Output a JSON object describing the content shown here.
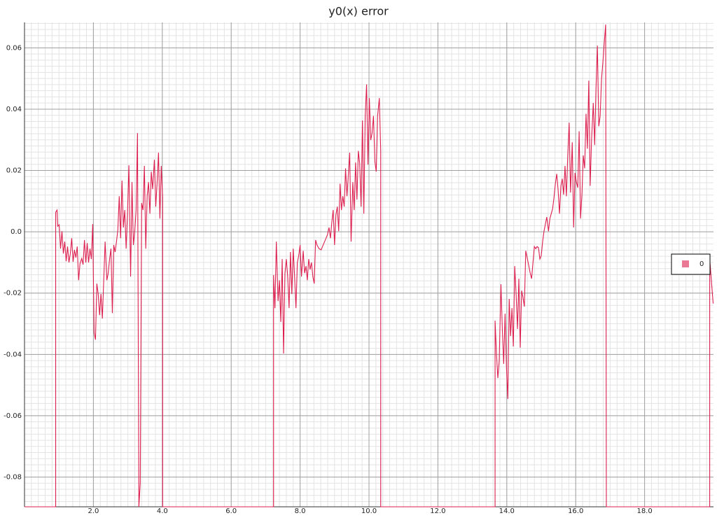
{
  "chart_data": {
    "type": "line",
    "title": "y0(x) error",
    "x": [
      0,
      0.905,
      0.905,
      0.945,
      0.966,
      1.006,
      1.047,
      1.087,
      1.128,
      1.168,
      1.209,
      1.25,
      1.29,
      1.33,
      1.37,
      1.41,
      1.45,
      1.49,
      1.53,
      1.57,
      1.61,
      1.66,
      1.7,
      1.74,
      1.78,
      1.82,
      1.86,
      1.9,
      1.94,
      1.98,
      2.02,
      2.06,
      2.1,
      2.14,
      2.18,
      2.22,
      2.26,
      2.3,
      2.34,
      2.39,
      2.43,
      2.47,
      2.51,
      2.55,
      2.59,
      2.63,
      2.67,
      2.71,
      2.75,
      2.79,
      2.83,
      2.87,
      2.91,
      2.95,
      2.99,
      3.03,
      3.08,
      3.12,
      3.16,
      3.2,
      3.24,
      3.28,
      3.32,
      3.36,
      3.4,
      3.44,
      3.48,
      3.52,
      3.56,
      3.6,
      3.64,
      3.68,
      3.72,
      3.77,
      3.81,
      3.85,
      3.89,
      3.93,
      3.97,
      4.01,
      4.01,
      7.23,
      7.23,
      7.27,
      7.31,
      7.36,
      7.4,
      7.44,
      7.48,
      7.52,
      7.56,
      7.6,
      7.64,
      7.68,
      7.72,
      7.76,
      7.8,
      7.84,
      7.88,
      7.92,
      7.96,
      8.0,
      8.04,
      8.09,
      8.13,
      8.17,
      8.21,
      8.25,
      8.29,
      8.33,
      8.37,
      8.41,
      8.45,
      8.49,
      8.55,
      8.61,
      8.67,
      8.73,
      8.79,
      8.84,
      8.88,
      8.92,
      8.96,
      9.0,
      9.04,
      9.08,
      9.12,
      9.16,
      9.2,
      9.24,
      9.28,
      9.32,
      9.36,
      9.4,
      9.44,
      9.48,
      9.53,
      9.57,
      9.61,
      9.65,
      9.69,
      9.73,
      9.77,
      9.81,
      9.85,
      9.89,
      9.93,
      9.97,
      10.01,
      10.05,
      10.09,
      10.13,
      10.17,
      10.21,
      10.25,
      10.3,
      10.34,
      10.34,
      13.66,
      13.66,
      13.7,
      13.74,
      13.78,
      13.83,
      13.87,
      13.91,
      13.95,
      13.99,
      14.03,
      14.07,
      14.11,
      14.15,
      14.19,
      14.23,
      14.27,
      14.31,
      14.35,
      14.39,
      14.43,
      14.47,
      14.51,
      14.55,
      14.6,
      14.64,
      14.68,
      14.72,
      14.8,
      14.84,
      14.88,
      14.92,
      14.96,
      15.0,
      15.04,
      15.08,
      15.12,
      15.16,
      15.21,
      15.25,
      15.29,
      15.33,
      15.37,
      15.41,
      15.45,
      15.49,
      15.53,
      15.57,
      15.61,
      15.65,
      15.69,
      15.73,
      15.77,
      15.81,
      15.85,
      15.9,
      15.94,
      15.98,
      16.02,
      16.06,
      16.1,
      16.14,
      16.18,
      16.22,
      16.26,
      16.3,
      16.34,
      16.38,
      16.42,
      16.46,
      16.51,
      16.55,
      16.59,
      16.63,
      16.67,
      16.71,
      16.75,
      16.79,
      16.83,
      16.87,
      16.89,
      19.89,
      19.89,
      19.99
    ],
    "series": [
      {
        "name": "0",
        "color": "#dc1f4f",
        "values": [
          -0.0897,
          -0.0897,
          0.0064,
          0.0071,
          0.0018,
          0.0023,
          -0.0055,
          0.0002,
          -0.0071,
          -0.0032,
          -0.0096,
          -0.0048,
          -0.01,
          -0.0071,
          -0.0021,
          -0.0098,
          -0.0059,
          -0.0084,
          -0.0048,
          -0.0158,
          -0.0105,
          -0.0087,
          -0.0107,
          -0.0027,
          -0.01,
          -0.0037,
          -0.01,
          -0.0055,
          -0.0089,
          0.0025,
          -0.0329,
          -0.0352,
          -0.0169,
          -0.0203,
          -0.0272,
          -0.0203,
          -0.0283,
          -0.0158,
          -0.0032,
          -0.0158,
          -0.0135,
          -0.0089,
          -0.0055,
          -0.0265,
          -0.0043,
          -0.0066,
          -0.0032,
          0.0007,
          0.0116,
          -0.0021,
          0.0167,
          0.0014,
          0.0071,
          -0.0055,
          0.0062,
          0.0217,
          -0.0146,
          0.0162,
          -0.0043,
          0.0002,
          0.0071,
          0.0322,
          -0.0897,
          -0.082,
          0.0094,
          0.0071,
          0.0215,
          -0.0055,
          0.0116,
          0.0162,
          0.0059,
          0.0196,
          0.0139,
          0.0235,
          0.0082,
          0.0162,
          0.0258,
          0.0043,
          0.0215,
          0.0112,
          -0.0897,
          -0.0897,
          -0.0141,
          -0.0249,
          -0.0032,
          -0.0226,
          -0.0158,
          -0.0294,
          -0.0089,
          -0.0397,
          -0.0135,
          -0.0089,
          -0.0146,
          -0.0249,
          -0.0066,
          -0.0203,
          -0.0055,
          -0.0146,
          -0.0249,
          -0.01,
          -0.0078,
          -0.0043,
          -0.0146,
          -0.0062,
          -0.0135,
          -0.0112,
          -0.0158,
          -0.0089,
          -0.0123,
          -0.01,
          -0.0146,
          -0.0169,
          -0.0027,
          -0.0043,
          -0.0055,
          -0.0059,
          -0.0043,
          -0.0027,
          -0.0011,
          0.0014,
          -0.0021,
          0.003,
          0.0071,
          -0.0043,
          0.0055,
          0.0082,
          0.0002,
          0.0157,
          0.0071,
          0.0116,
          0.0082,
          0.0207,
          0.0116,
          0.0185,
          0.0258,
          -0.0032,
          0.0162,
          0.0071,
          0.0226,
          0.0105,
          0.0264,
          0.0223,
          0.0082,
          0.0363,
          0.0059,
          0.0378,
          0.0481,
          0.0219,
          0.0436,
          0.0299,
          0.0322,
          0.0378,
          0.023,
          0.0196,
          0.0378,
          0.0436,
          0.0264,
          -0.0897,
          -0.0897,
          -0.029,
          -0.0397,
          -0.0477,
          -0.042,
          -0.0171,
          -0.0317,
          -0.0431,
          -0.0267,
          -0.0442,
          -0.0545,
          -0.0219,
          -0.034,
          -0.0249,
          -0.0374,
          -0.0112,
          -0.0203,
          -0.0317,
          -0.0153,
          -0.0378,
          -0.0192,
          -0.0214,
          -0.0244,
          -0.0062,
          -0.0089,
          -0.0112,
          -0.0135,
          -0.0153,
          -0.0048,
          -0.0055,
          -0.0048,
          -0.0052,
          -0.0089,
          -0.0078,
          -0.0032,
          0.0002,
          0.0025,
          0.0048,
          0.0002,
          0.0043,
          0.0059,
          0.0075,
          0.0112,
          0.0157,
          0.0189,
          0.0135,
          0.0059,
          0.015,
          0.0173,
          0.0121,
          0.0215,
          0.0116,
          0.0249,
          0.0356,
          0.0128,
          0.0292,
          0.0014,
          0.0192,
          0.0162,
          0.0144,
          0.0328,
          0.0043,
          0.0121,
          0.0249,
          0.0207,
          0.0385,
          0.0271,
          0.0493,
          0.015,
          0.0299,
          0.042,
          0.0283,
          0.047,
          0.0607,
          0.0344,
          0.0378,
          0.0499,
          0.0554,
          0.0618,
          0.0676,
          -0.0897,
          -0.0897,
          -0.0089,
          -0.0234
        ]
      }
    ],
    "xlim": [
      0,
      20
    ],
    "ylim": [
      -0.0897,
      0.0683
    ],
    "xticks": [
      {
        "value": 2,
        "label": "2.0"
      },
      {
        "value": 4,
        "label": "4.0"
      },
      {
        "value": 6,
        "label": "6.0"
      },
      {
        "value": 8,
        "label": "8.0"
      },
      {
        "value": 10,
        "label": "10.0"
      },
      {
        "value": 12,
        "label": "12.0"
      },
      {
        "value": 14,
        "label": "14.0"
      },
      {
        "value": 16,
        "label": "16.0"
      },
      {
        "value": 18,
        "label": "18.0"
      }
    ],
    "yticks": [
      -0.08,
      -0.06,
      -0.04,
      -0.02,
      {
        "value": 0,
        "label": "0.0"
      },
      0.02,
      0.04,
      0.06
    ],
    "grid": true,
    "legend": "right"
  }
}
